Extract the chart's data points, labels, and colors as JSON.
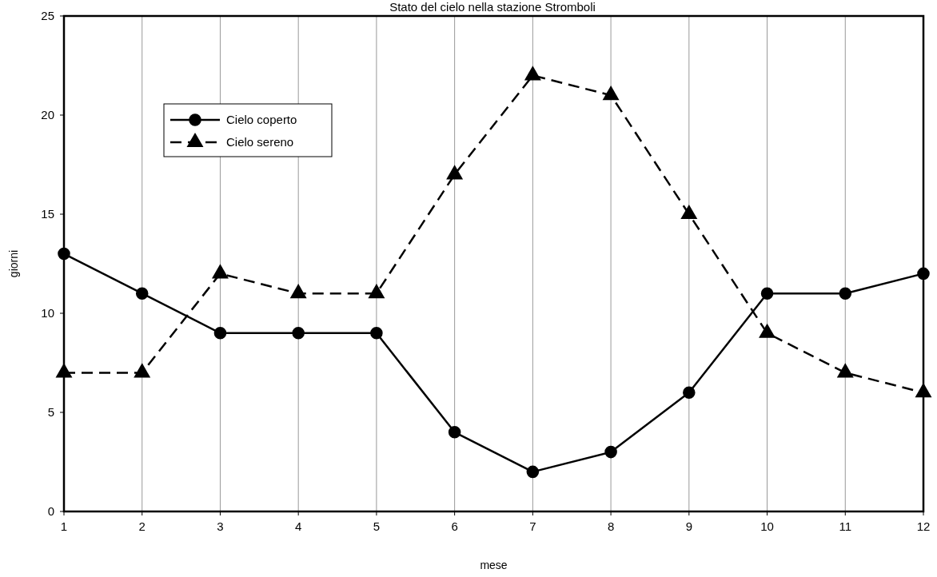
{
  "chart_data": {
    "type": "line",
    "title": "Stato del cielo nella stazione Stromboli",
    "xlabel": "mese",
    "ylabel": "giorni",
    "x": [
      1,
      2,
      3,
      4,
      5,
      6,
      7,
      8,
      9,
      10,
      11,
      12
    ],
    "series": [
      {
        "name": "Cielo coperto",
        "color": "#000000",
        "marker": "circle",
        "line_style": "solid",
        "values": [
          13,
          11,
          9,
          9,
          9,
          4,
          2,
          3,
          6,
          11,
          11,
          12
        ]
      },
      {
        "name": "Cielo sereno",
        "color": "#000000",
        "marker": "triangle",
        "line_style": "dashed",
        "values": [
          7,
          7,
          12,
          11,
          11,
          17,
          22,
          21,
          15,
          9,
          7,
          6
        ]
      }
    ],
    "xlim": [
      1,
      12
    ],
    "xticks": [
      1,
      2,
      3,
      4,
      5,
      6,
      7,
      8,
      9,
      10,
      11,
      12
    ],
    "ylim": [
      0,
      25
    ],
    "yticks": [
      0,
      5,
      10,
      15,
      20,
      25
    ],
    "grid": "x",
    "legend": "top left"
  }
}
